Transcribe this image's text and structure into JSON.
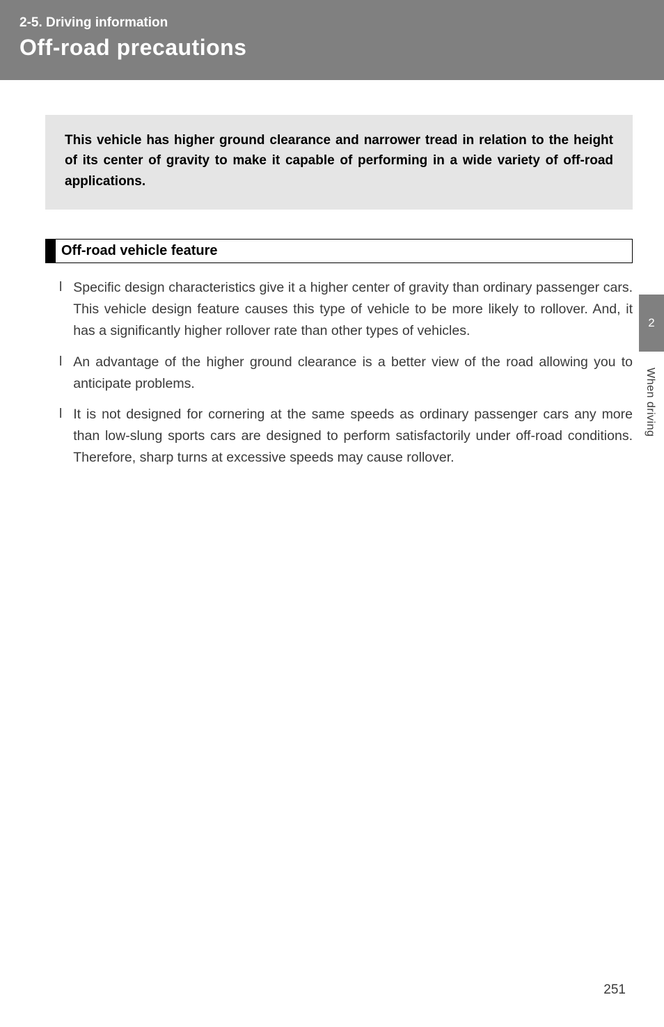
{
  "header": {
    "section_label": "2-5. Driving information",
    "title": "Off-road precautions"
  },
  "intro": {
    "text": "This vehicle has higher ground clearance and narrower tread in relation to the height of its center of gravity to make it capable of performing in a wide variety of off-road applications."
  },
  "feature_heading": "Off-road vehicle feature",
  "bullets": [
    {
      "marker": "l",
      "text": "Specific design characteristics give it a higher center of gravity than ordinary passenger cars. This vehicle design feature causes this type of vehicle to be more likely to rollover. And, it has a significantly higher rollover rate than other types of vehicles."
    },
    {
      "marker": "l",
      "text": "An advantage of the higher ground clearance is a better view of the road allowing you to anticipate problems."
    },
    {
      "marker": "l",
      "text": "It is not designed for cornering at the same speeds as ordinary passenger cars any more than low-slung sports cars are designed to perform satisfactorily under off-road conditions. Therefore, sharp turns at excessive speeds may cause rollover."
    }
  ],
  "side_tab": {
    "number": "2",
    "label": "When driving"
  },
  "page_number": "251",
  "colors": {
    "header_bg": "#808080",
    "header_text": "#ffffff",
    "intro_bg": "#e5e5e5",
    "body_text": "#3a3a3a",
    "page_bg": "#ffffff"
  }
}
